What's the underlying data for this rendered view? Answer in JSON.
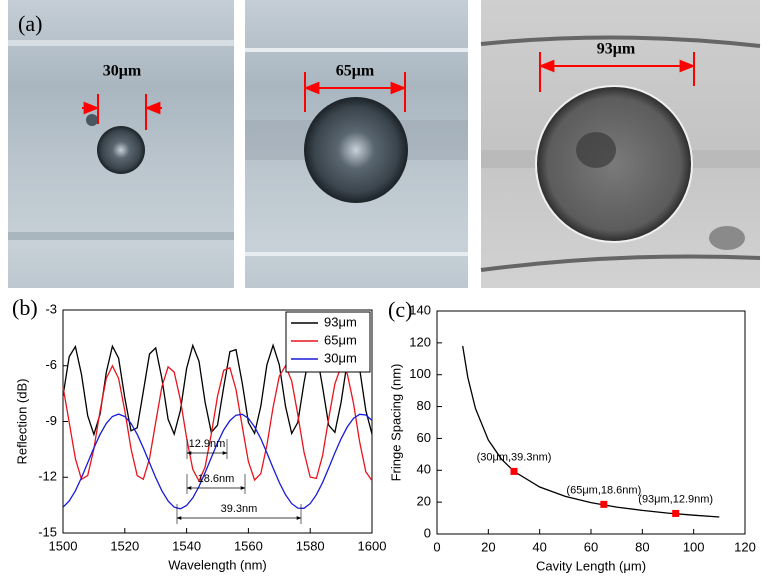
{
  "figure_a": {
    "label": "(a)",
    "images": [
      {
        "scale_label": "30μm"
      },
      {
        "scale_label": "65μm"
      },
      {
        "scale_label": "93μm"
      }
    ]
  },
  "chart_data": [
    {
      "type": "line",
      "label": "(b)",
      "x_label": "Wavelength (nm)",
      "y_label": "Reflection (dB)",
      "x": [
        1500,
        1502,
        1504,
        1506,
        1508,
        1510,
        1512,
        1514,
        1516,
        1518,
        1520,
        1522,
        1524,
        1526,
        1528,
        1530,
        1532,
        1534,
        1536,
        1538,
        1540,
        1542,
        1544,
        1546,
        1548,
        1550,
        1552,
        1554,
        1556,
        1558,
        1560,
        1562,
        1564,
        1566,
        1568,
        1570,
        1572,
        1574,
        1576,
        1578,
        1580,
        1582,
        1584,
        1586,
        1588,
        1590,
        1592,
        1594,
        1596,
        1598,
        1600
      ],
      "series": [
        {
          "name": "93μm",
          "color": "#000000",
          "values": [
            -7.62,
            -5.51,
            -4.97,
            -6.47,
            -8.69,
            -9.7,
            -8.6,
            -6.36,
            -4.95,
            -5.59,
            -7.73,
            -9.5,
            -9.34,
            -7.39,
            -5.37,
            -5.04,
            -6.69,
            -8.88,
            -9.68,
            -8.4,
            -6.15,
            -4.91,
            -5.76,
            -7.96,
            -9.58,
            -9.2,
            -7.15,
            -5.24,
            -5.13,
            -6.92,
            -9.05,
            -9.64,
            -8.18,
            -5.95,
            -4.9,
            -5.95,
            -8.18,
            -9.64,
            -9.05,
            -6.92,
            -5.13,
            -5.24,
            -7.15,
            -9.2,
            -9.58,
            -7.96,
            -5.76,
            -4.91,
            -6.15,
            -8.4,
            -9.68
          ]
        },
        {
          "name": "65μm",
          "color": "#e8141c",
          "values": [
            -7.12,
            -9.05,
            -11.0,
            -12.11,
            -11.91,
            -10.47,
            -8.42,
            -6.68,
            -6.0,
            -6.68,
            -8.42,
            -10.46,
            -11.91,
            -12.11,
            -11.0,
            -9.05,
            -7.12,
            -6.06,
            -6.34,
            -7.83,
            -9.88,
            -11.58,
            -12.2,
            -11.45,
            -9.68,
            -7.65,
            -6.25,
            -6.11,
            -7.28,
            -9.25,
            -11.16,
            -12.15,
            -11.81,
            -10.27,
            -8.23,
            -6.56,
            -6.01,
            -6.82,
            -8.63,
            -10.64,
            -11.99,
            -12.06,
            -10.83,
            -8.84,
            -6.97,
            -6.03,
            -6.44,
            -8.02,
            -10.08,
            -11.7,
            -12.18
          ]
        },
        {
          "name": "30μm",
          "color": "#1a1ad8",
          "values": [
            -13.61,
            -13.28,
            -12.73,
            -12.02,
            -11.22,
            -10.42,
            -9.69,
            -9.1,
            -8.73,
            -8.6,
            -8.73,
            -9.1,
            -9.69,
            -10.42,
            -11.22,
            -12.02,
            -12.73,
            -13.28,
            -13.61,
            -13.7,
            -13.52,
            -13.11,
            -12.5,
            -11.75,
            -10.94,
            -10.15,
            -9.46,
            -8.95,
            -8.66,
            -8.61,
            -8.83,
            -9.29,
            -9.92,
            -10.69,
            -11.5,
            -12.28,
            -12.94,
            -13.42,
            -13.66,
            -13.67,
            -13.42,
            -12.94,
            -12.28,
            -11.5,
            -10.69,
            -9.93,
            -9.29,
            -8.83,
            -8.61,
            -8.65,
            -8.94
          ]
        }
      ],
      "xlim": [
        1500,
        1600
      ],
      "xticks": [
        1500,
        1520,
        1540,
        1560,
        1580,
        1600
      ],
      "ylim": [
        -15,
        -3
      ],
      "yticks": [
        -15,
        -12,
        -9,
        -6,
        -3
      ],
      "legend": "top-right",
      "annotations": [
        "12.9nm",
        "18.6nm",
        "39.3nm"
      ]
    },
    {
      "type": "line",
      "label": "(c)",
      "x_label": "Cavity Length (μm)",
      "y_label": "Fringe Spacing (nm)",
      "x": [
        10,
        12,
        15,
        20,
        25,
        30,
        40,
        50,
        60,
        70,
        80,
        90,
        100,
        110
      ],
      "values": [
        118,
        98.3,
        78.7,
        59,
        47.2,
        39.3,
        29.5,
        23.6,
        19.7,
        16.9,
        14.8,
        13.1,
        11.8,
        10.7
      ],
      "color": "#000000",
      "markers": {
        "x": [
          30,
          65,
          93
        ],
        "values": [
          39.3,
          18.6,
          12.9
        ],
        "labels": [
          "(30μm,39.3nm)",
          "(65μm,18.6nm)",
          "(93μm,12.9nm)"
        ],
        "color": "#ff0000"
      },
      "xlim": [
        0,
        120
      ],
      "xticks": [
        0,
        20,
        40,
        60,
        80,
        100,
        120
      ],
      "ylim": [
        0,
        140
      ],
      "yticks": [
        0,
        20,
        40,
        60,
        80,
        100,
        120,
        140
      ]
    }
  ]
}
